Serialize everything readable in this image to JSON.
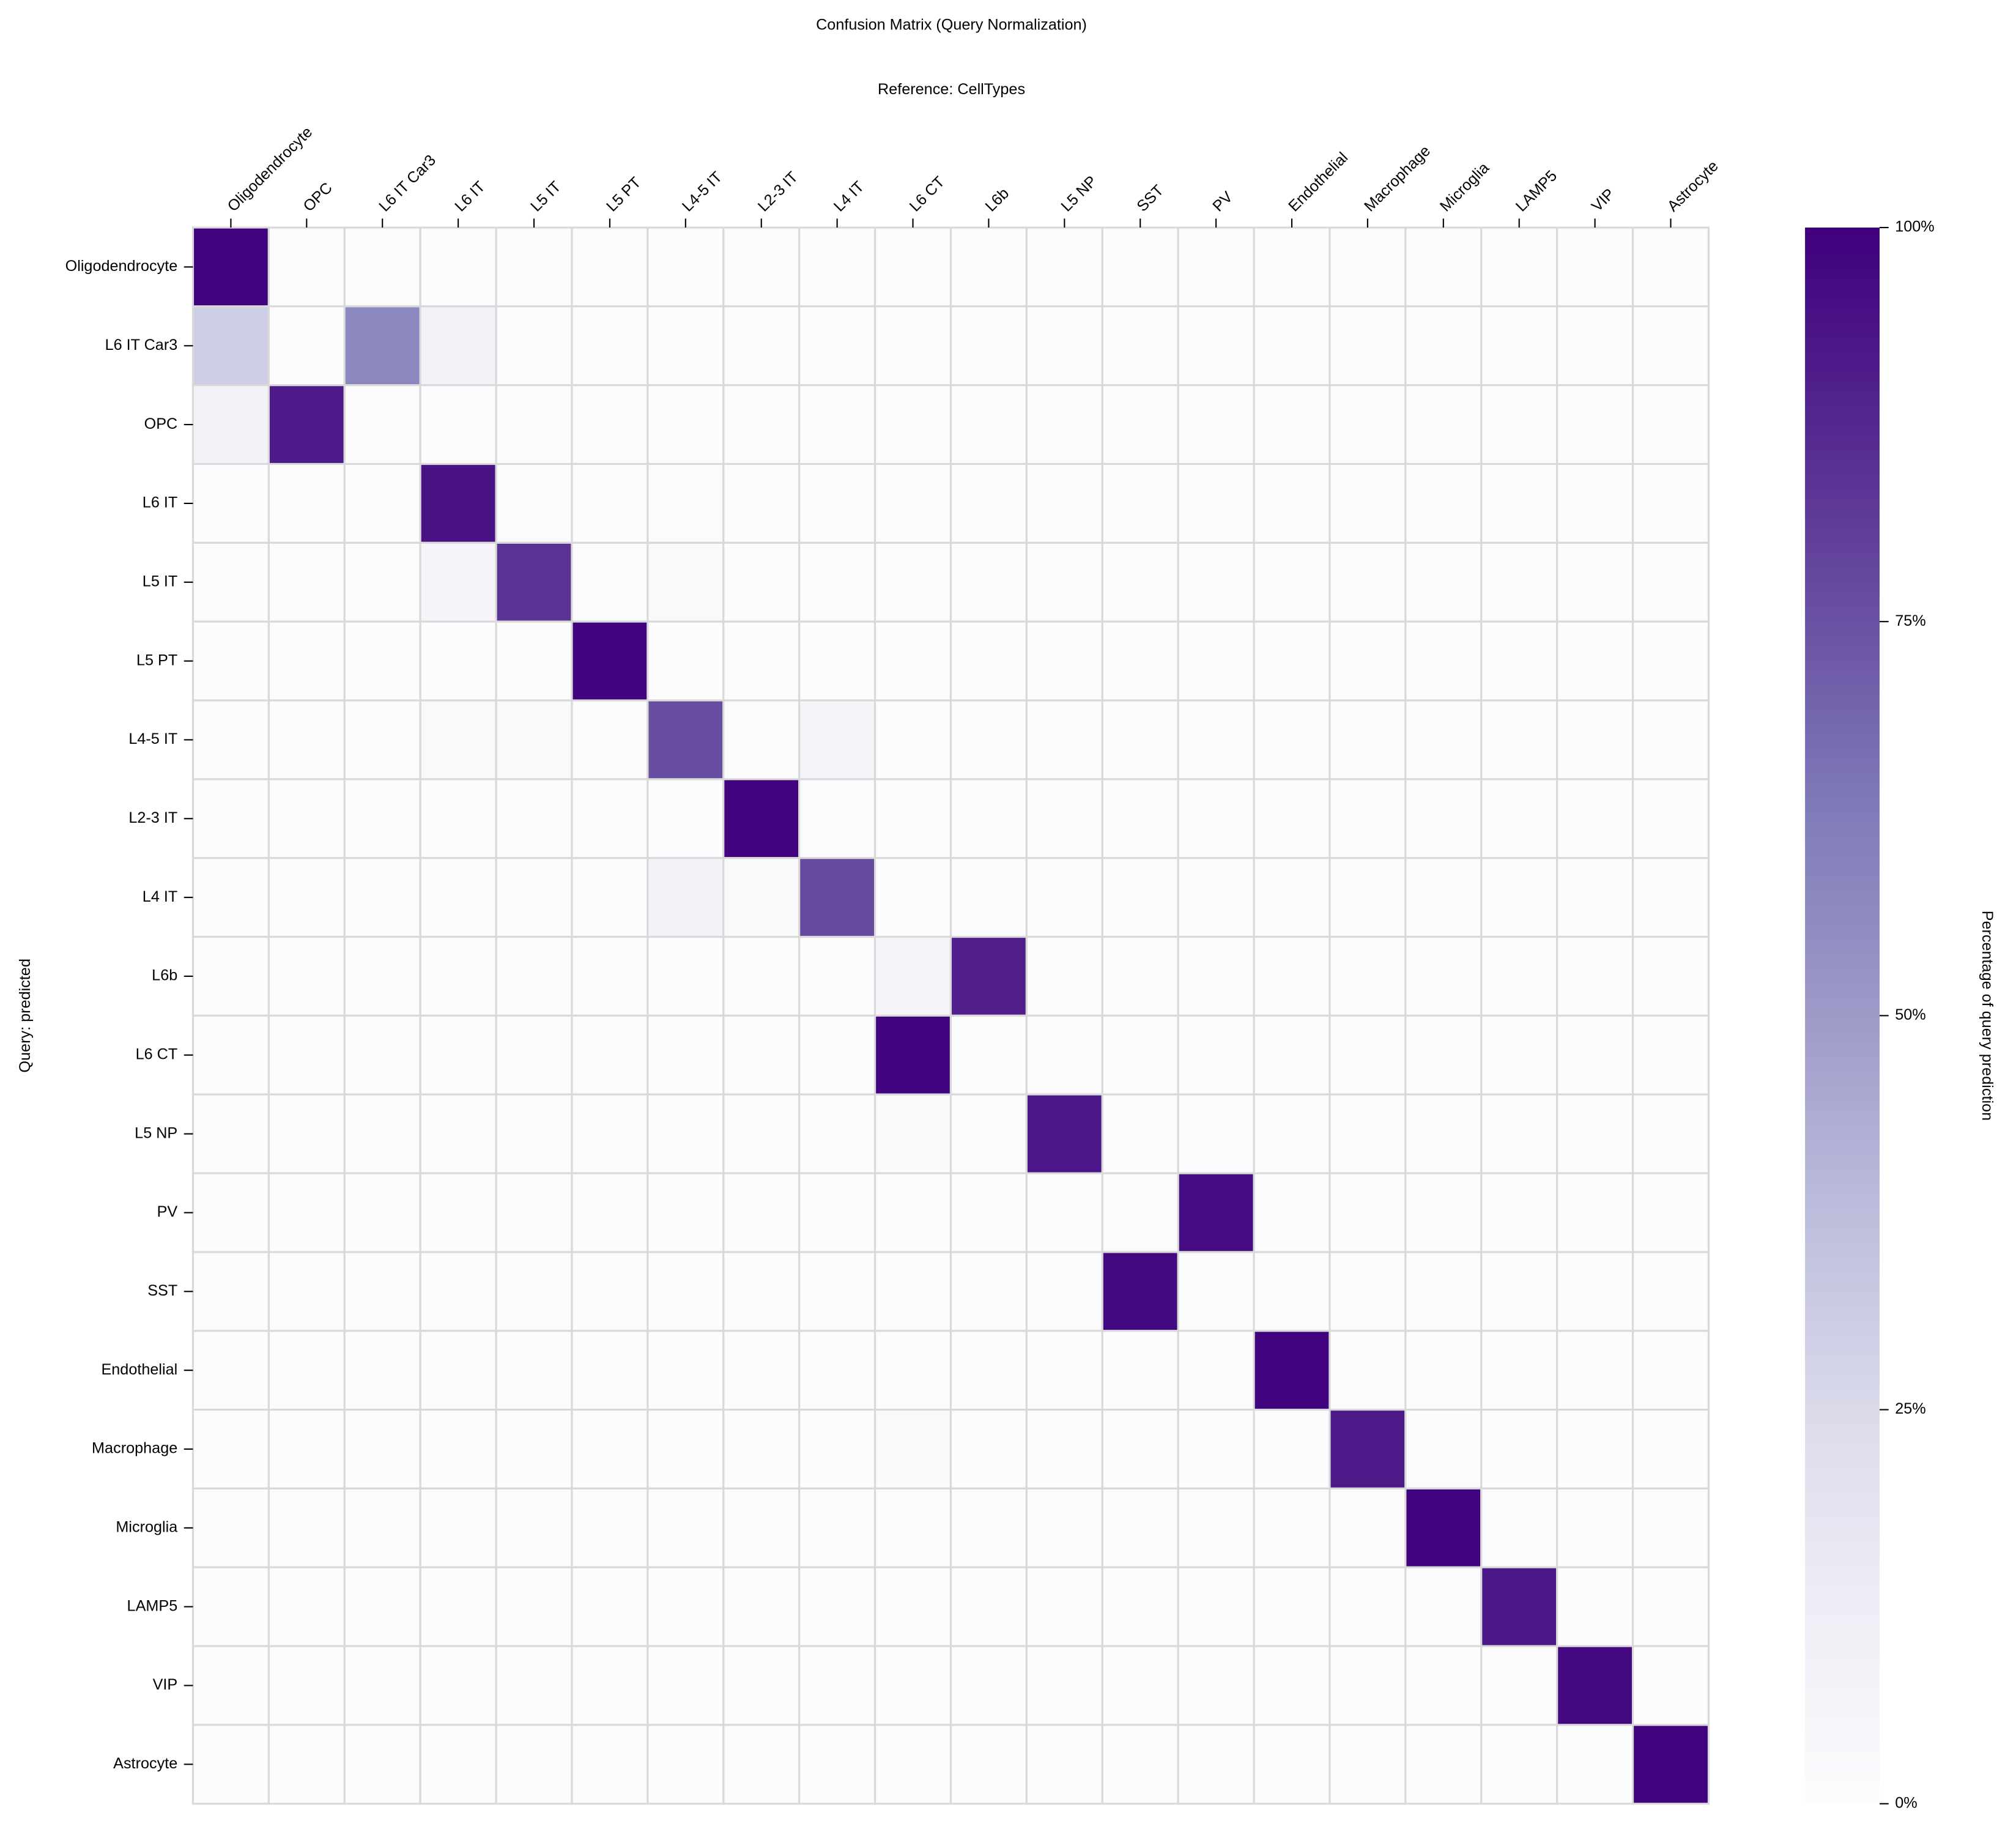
{
  "chart_data": {
    "type": "heatmap",
    "title": "Confusion Matrix (Query Normalization)",
    "x_label": "Reference: CellTypes",
    "y_label": "Query: predicted",
    "colorbar_label": "Percentage of query prediction",
    "x_categories": [
      "Oligodendrocyte",
      "OPC",
      "L6 IT Car3",
      "L6 IT",
      "L5 IT",
      "L5 PT",
      "L4-5 IT",
      "L2-3 IT",
      "L4 IT",
      "L6 CT",
      "L6b",
      "L5 NP",
      "SST",
      "PV",
      "Endothelial",
      "Macrophage",
      "Microglia",
      "LAMP5",
      "VIP",
      "Astrocyte"
    ],
    "y_categories": [
      "Oligodendrocyte",
      "L6 IT Car3",
      "OPC",
      "L6 IT",
      "L5 IT",
      "L5 PT",
      "L4-5 IT",
      "L2-3 IT",
      "L4 IT",
      "L6b",
      "L6 CT",
      "L5 NP",
      "PV",
      "SST",
      "Endothelial",
      "Macrophage",
      "Microglia",
      "LAMP5",
      "VIP",
      "Astrocyte"
    ],
    "z": [
      [
        99,
        0,
        0,
        0,
        0,
        0,
        0,
        0,
        0,
        0,
        0,
        0,
        0,
        0,
        0,
        0,
        0,
        0,
        0,
        0
      ],
      [
        30,
        0,
        58,
        8,
        0,
        0,
        0,
        0,
        0,
        0,
        0,
        0,
        0,
        0,
        0,
        0,
        0,
        0,
        0,
        0
      ],
      [
        8,
        91,
        0,
        0,
        0,
        0,
        0,
        0,
        0,
        0,
        0,
        0,
        0,
        0,
        0,
        0,
        0,
        0,
        0,
        0
      ],
      [
        0,
        0,
        0,
        94,
        1,
        0,
        1,
        0,
        0,
        0,
        0,
        0,
        0,
        0,
        0,
        0,
        0,
        0,
        0,
        0
      ],
      [
        0,
        0,
        0,
        6,
        84,
        0,
        3,
        0,
        0,
        0,
        0,
        0,
        0,
        0,
        0,
        0,
        0,
        0,
        0,
        0
      ],
      [
        0,
        0,
        0,
        0,
        0,
        99,
        0,
        0,
        0,
        0,
        0,
        0,
        0,
        0,
        0,
        0,
        0,
        0,
        0,
        0
      ],
      [
        0,
        0,
        0,
        3,
        3,
        0,
        76,
        1,
        6,
        0,
        0,
        0,
        0,
        0,
        0,
        0,
        0,
        0,
        0,
        0
      ],
      [
        0,
        0,
        0,
        0,
        0,
        0,
        0,
        99,
        0,
        0,
        0,
        0,
        0,
        0,
        0,
        0,
        0,
        0,
        0,
        0
      ],
      [
        0,
        0,
        0,
        0,
        0,
        0,
        8,
        3,
        77,
        0,
        0,
        0,
        0,
        0,
        0,
        0,
        0,
        0,
        0,
        0
      ],
      [
        0,
        0,
        0,
        0,
        0,
        0,
        0,
        0,
        0,
        6,
        90,
        0,
        0,
        0,
        0,
        0,
        0,
        0,
        0,
        0
      ],
      [
        0,
        0,
        0,
        0,
        0,
        0,
        0,
        0,
        0,
        99,
        1,
        0,
        0,
        0,
        0,
        0,
        0,
        0,
        0,
        0
      ],
      [
        0,
        0,
        0,
        0,
        0,
        0,
        0,
        0,
        0,
        2,
        1,
        93,
        0,
        0,
        0,
        0,
        0,
        0,
        0,
        0
      ],
      [
        0,
        0,
        0,
        0,
        0,
        0,
        0,
        0,
        0,
        0,
        0,
        0,
        1,
        96,
        0,
        0,
        0,
        0,
        0,
        0
      ],
      [
        0,
        0,
        0,
        0,
        0,
        0,
        0,
        0,
        0,
        0,
        0,
        0,
        97,
        1,
        0,
        0,
        0,
        0,
        0,
        0
      ],
      [
        0,
        0,
        0,
        0,
        0,
        0,
        0,
        0,
        0,
        0,
        0,
        0,
        0,
        0,
        99,
        0,
        0,
        0,
        0,
        0
      ],
      [
        0,
        0,
        0,
        0,
        0,
        0,
        0,
        0,
        0,
        2,
        0,
        0,
        0,
        0,
        0,
        92,
        1,
        0,
        0,
        0
      ],
      [
        0,
        0,
        0,
        0,
        0,
        0,
        0,
        0,
        0,
        0,
        0,
        0,
        0,
        0,
        0,
        0,
        99,
        0,
        0,
        0
      ],
      [
        0,
        0,
        0,
        0,
        0,
        0,
        0,
        0,
        0,
        0,
        0,
        0,
        0,
        0,
        0,
        0,
        0,
        93,
        0,
        1
      ],
      [
        0,
        0,
        0,
        0,
        0,
        0,
        0,
        0,
        0,
        0,
        0,
        0,
        0,
        0,
        0,
        0,
        0,
        0,
        97,
        0
      ],
      [
        0,
        0,
        0,
        0,
        0,
        0,
        0,
        0,
        0,
        0,
        0,
        0,
        0,
        0,
        0,
        0,
        0,
        0,
        0,
        99
      ]
    ],
    "clim": [
      0,
      100
    ],
    "cticks": [
      {
        "value": 0,
        "label": "0%"
      },
      {
        "value": 25,
        "label": "25%"
      },
      {
        "value": 50,
        "label": "50%"
      },
      {
        "value": 75,
        "label": "75%"
      },
      {
        "value": 100,
        "label": "100%"
      }
    ],
    "colorscale": [
      "#fcfbfd",
      "#efedf5",
      "#dadaeb",
      "#bcbddc",
      "#9e9ac8",
      "#807dba",
      "#6a51a3",
      "#54278f",
      "#3f007d"
    ],
    "cell_border": "#d9d9d9"
  }
}
